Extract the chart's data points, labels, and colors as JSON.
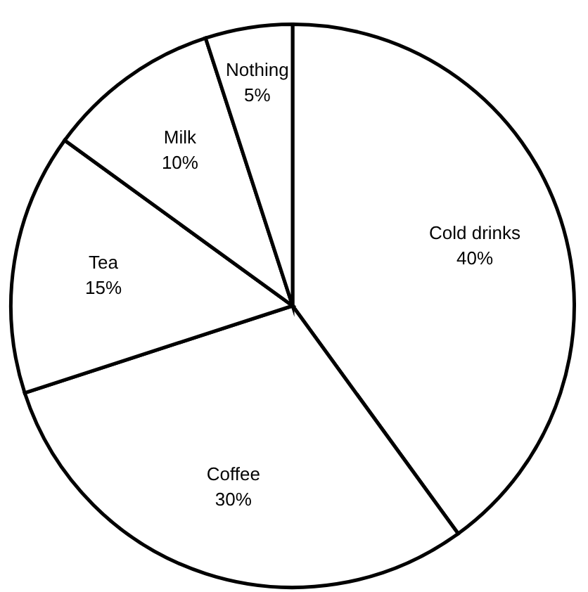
{
  "chart_data": {
    "type": "pie",
    "categories": [
      "Cold drinks",
      "Coffee",
      "Tea",
      "Milk",
      "Nothing"
    ],
    "values": [
      40,
      30,
      15,
      10,
      5
    ],
    "value_labels": [
      "40%",
      "30%",
      "15%",
      "10%",
      "5%"
    ],
    "colors": [
      "#ffffff",
      "#ffffff",
      "#ffffff",
      "#ffffff",
      "#ffffff"
    ],
    "legend": false
  }
}
